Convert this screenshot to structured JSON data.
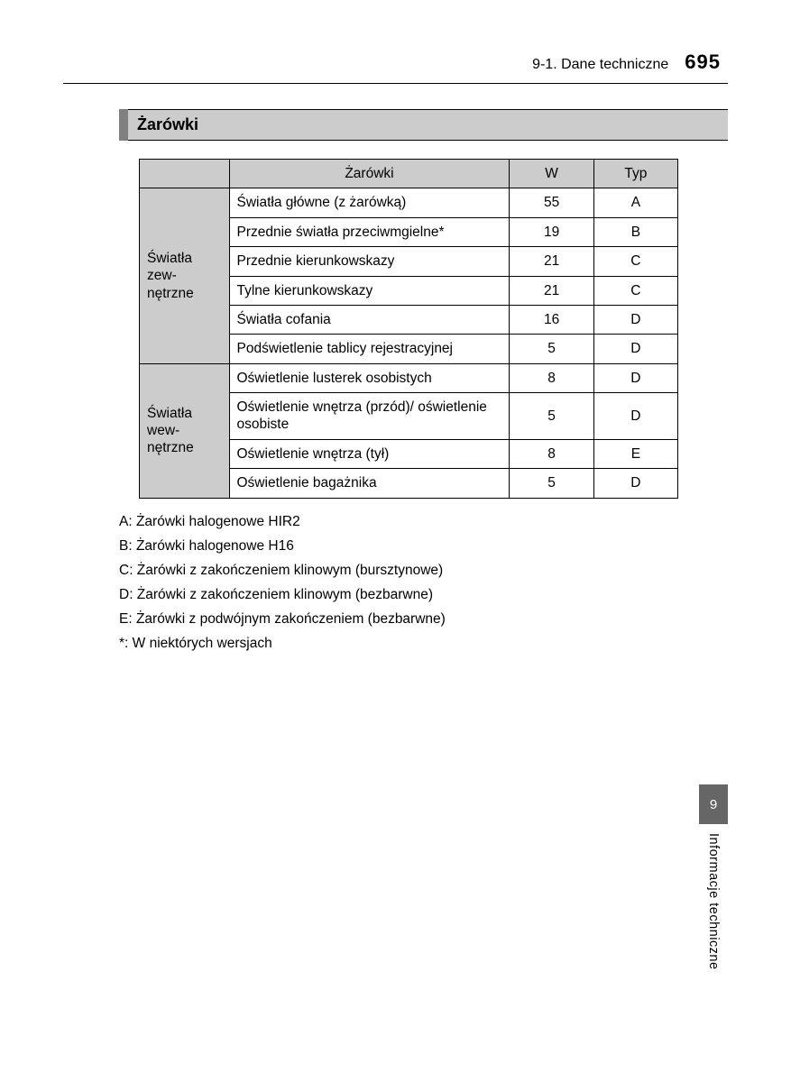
{
  "header": {
    "section": "9-1. Dane techniczne",
    "page_number": "695"
  },
  "heading": "Żarówki",
  "table": {
    "headers": {
      "desc": "Żarówki",
      "w": "W",
      "typ": "Typ"
    },
    "groups": [
      {
        "label": "Światła zew-nętrzne",
        "rows": [
          {
            "desc": "Światła główne (z żarówką)",
            "w": "55",
            "typ": "A"
          },
          {
            "desc": "Przednie światła przeciwmgielne*",
            "w": "19",
            "typ": "B"
          },
          {
            "desc": "Przednie kierunkowskazy",
            "w": "21",
            "typ": "C"
          },
          {
            "desc": "Tylne kierunkowskazy",
            "w": "21",
            "typ": "C"
          },
          {
            "desc": "Światła cofania",
            "w": "16",
            "typ": "D"
          },
          {
            "desc": "Podświetlenie tablicy rejestracyjnej",
            "w": "5",
            "typ": "D"
          }
        ]
      },
      {
        "label": "Światła wew-nętrzne",
        "rows": [
          {
            "desc": "Oświetlenie lusterek osobistych",
            "w": "8",
            "typ": "D"
          },
          {
            "desc": "Oświetlenie wnętrza (przód)/ oświetlenie osobiste",
            "w": "5",
            "typ": "D"
          },
          {
            "desc": "Oświetlenie wnętrza (tył)",
            "w": "8",
            "typ": "E"
          },
          {
            "desc": "Oświetlenie bagażnika",
            "w": "5",
            "typ": "D"
          }
        ]
      }
    ]
  },
  "legend": [
    "A: Żarówki halogenowe HIR2",
    "B: Żarówki halogenowe H16",
    "C: Żarówki z zakończeniem klinowym (bursztynowe)",
    "D: Żarówki z zakończeniem klinowym (bezbarwne)",
    "E: Żarówki z podwójnym zakończeniem (bezbarwne)",
    "*: W niektórych wersjach"
  ],
  "side_tab": {
    "chapter": "9",
    "label": "Informacje techniczne"
  },
  "colors": {
    "header_gray": "#cccccc",
    "accent_gray": "#808080",
    "tab_gray": "#666666",
    "text": "#000000",
    "background": "#ffffff"
  }
}
